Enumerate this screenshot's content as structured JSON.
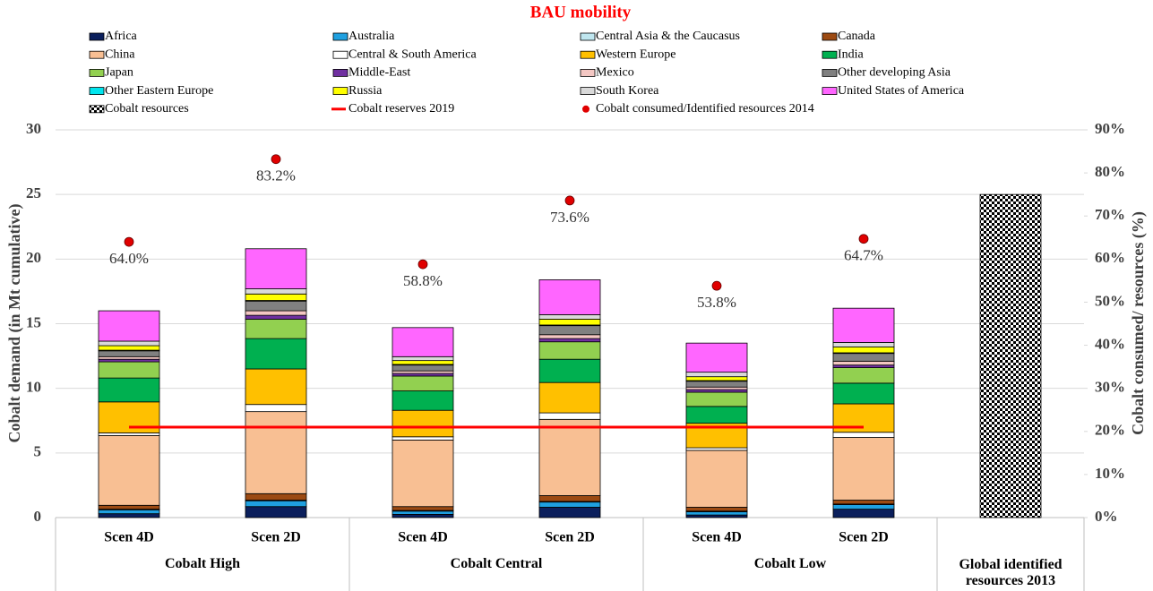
{
  "chart_data": {
    "type": "bar",
    "stacked": true,
    "title": "BAU mobility",
    "y_label": "Cobalt demand (in Mt cumulative)",
    "y2_label": "Cobalt consumed/ resources (%)",
    "categories": [
      "Scen 4D",
      "Scen 2D",
      "Scen 4D",
      "Scen 2D",
      "Scen 4D",
      "Scen 2D",
      null
    ],
    "groups": [
      "Cobalt High",
      "Cobalt Central",
      "Cobalt Low",
      "Global identified resources 2013"
    ],
    "ylim": [
      0,
      30
    ],
    "yticks": [
      0,
      5,
      10,
      15,
      20,
      25,
      30
    ],
    "y2lim": [
      0,
      90
    ],
    "y2ticks": [
      {
        "value": 0,
        "label": "0%"
      },
      {
        "value": 10,
        "label": "10%"
      },
      {
        "value": 20,
        "label": "20%"
      },
      {
        "value": 30,
        "label": "30%"
      },
      {
        "value": 40,
        "label": "40%"
      },
      {
        "value": 50,
        "label": "50%"
      },
      {
        "value": 60,
        "label": "60%"
      },
      {
        "value": 70,
        "label": "70%"
      },
      {
        "value": 80,
        "label": "80%"
      },
      {
        "value": 90,
        "label": "90%"
      }
    ],
    "grid": true,
    "series": [
      {
        "name": "Africa",
        "color": "#0b1f5c",
        "values": [
          0.3,
          0.85,
          0.25,
          0.8,
          0.2,
          0.65,
          null
        ]
      },
      {
        "name": "Australia",
        "color": "#1fa0e0",
        "values": [
          0.3,
          0.45,
          0.25,
          0.4,
          0.25,
          0.35,
          null
        ]
      },
      {
        "name": "Central Asia & the Caucasus",
        "color": "#bfe6ef",
        "values": [
          0.05,
          0.05,
          0.05,
          0.05,
          0.05,
          0.05,
          null
        ]
      },
      {
        "name": "Canada",
        "color": "#9c4a12",
        "values": [
          0.3,
          0.5,
          0.3,
          0.45,
          0.3,
          0.3,
          null
        ]
      },
      {
        "name": "China",
        "color": "#f8bf93",
        "values": [
          5.4,
          6.35,
          5.15,
          5.9,
          4.4,
          4.85,
          null
        ]
      },
      {
        "name": "Central & South America",
        "color": "#ffffff",
        "values": [
          0.2,
          0.55,
          0.25,
          0.5,
          0.2,
          0.4,
          null
        ]
      },
      {
        "name": "Western Europe",
        "color": "#ffc000",
        "values": [
          2.4,
          2.75,
          2.05,
          2.35,
          1.9,
          2.2,
          null
        ]
      },
      {
        "name": "India",
        "color": "#00b050",
        "values": [
          1.85,
          2.35,
          1.5,
          1.8,
          1.3,
          1.6,
          null
        ]
      },
      {
        "name": "Japan",
        "color": "#92d050",
        "values": [
          1.25,
          1.5,
          1.15,
          1.35,
          1.1,
          1.2,
          null
        ]
      },
      {
        "name": "Middle-East",
        "color": "#7030a0",
        "values": [
          0.2,
          0.3,
          0.2,
          0.25,
          0.2,
          0.2,
          null
        ]
      },
      {
        "name": "Mexico",
        "color": "#f4c7c3",
        "values": [
          0.2,
          0.35,
          0.2,
          0.3,
          0.2,
          0.3,
          null
        ]
      },
      {
        "name": "Other developing Asia",
        "color": "#808080",
        "values": [
          0.45,
          0.75,
          0.45,
          0.7,
          0.45,
          0.6,
          null
        ]
      },
      {
        "name": "Other Eastern Europe",
        "color": "#00e5ee",
        "values": [
          0.05,
          0.05,
          0.05,
          0.05,
          0.05,
          0.05,
          null
        ]
      },
      {
        "name": "Russia",
        "color": "#ffff00",
        "values": [
          0.35,
          0.5,
          0.3,
          0.45,
          0.3,
          0.45,
          null
        ]
      },
      {
        "name": "South Korea",
        "color": "#d9d9d9",
        "values": [
          0.35,
          0.4,
          0.3,
          0.35,
          0.35,
          0.35,
          null
        ]
      },
      {
        "name": "United States of America",
        "color": "#ff66ff",
        "values": [
          2.35,
          3.1,
          2.25,
          2.7,
          2.25,
          2.65,
          null
        ]
      },
      {
        "name": "Cobalt resources",
        "color": "#000000",
        "pattern": "checkerboard",
        "values": [
          null,
          null,
          null,
          null,
          null,
          null,
          25
        ]
      },
      {
        "name": "Cobalt reserves 2019",
        "type": "line",
        "color": "#ff0000",
        "values": [
          7,
          7,
          7,
          7,
          7,
          7,
          null
        ]
      },
      {
        "name": "Cobalt consumed/Identified resources 2014",
        "type": "scatter",
        "axis": "y2",
        "color": "#e00000",
        "values": [
          64.0,
          83.2,
          58.8,
          73.6,
          53.8,
          64.7,
          null
        ],
        "value_labels": [
          "64.0%",
          "83.2%",
          "58.8%",
          "73.6%",
          "53.8%",
          "64.7%",
          null
        ]
      }
    ]
  }
}
